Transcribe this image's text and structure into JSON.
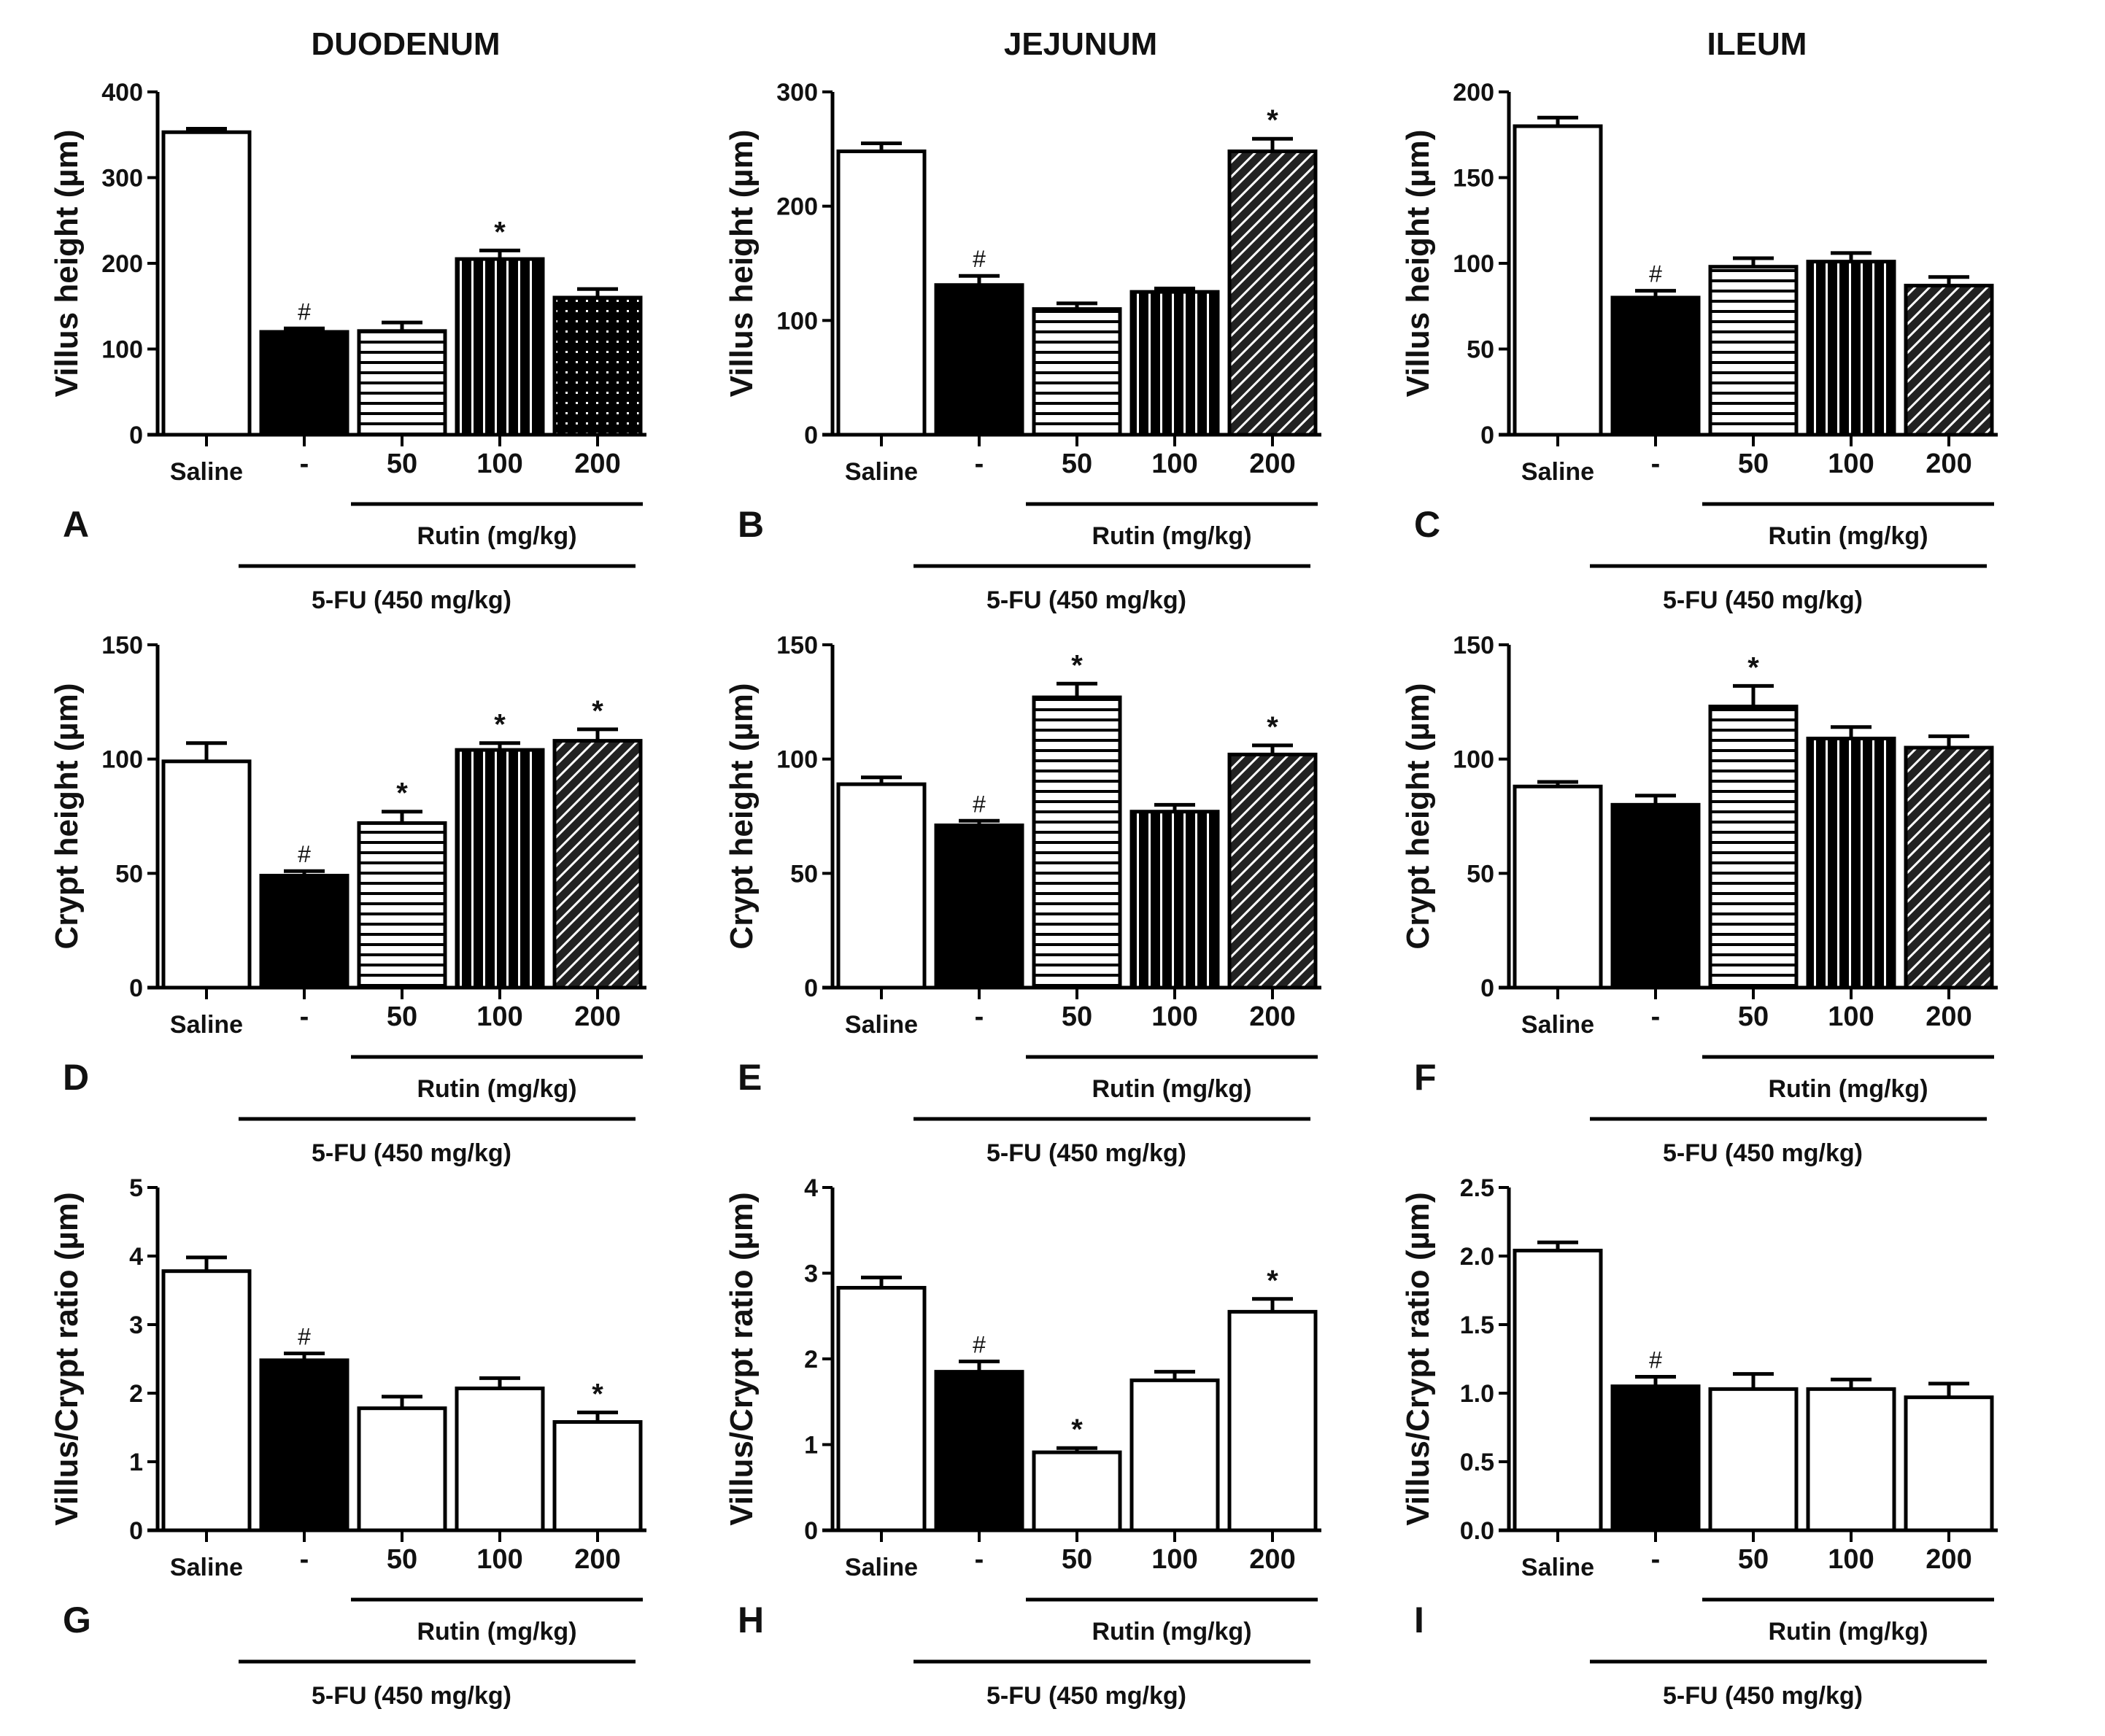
{
  "columns": [
    "DUODENUM",
    "JEJUNUM",
    "ILEUM"
  ],
  "chart_data": [
    {
      "type": "bar",
      "panel": "A",
      "column": 0,
      "row": 0,
      "ylabel": "Villus height (µm)",
      "ylim": [
        0,
        400
      ],
      "yticks": [
        0,
        100,
        200,
        300,
        400
      ],
      "ytick_labels": [
        "0",
        "100",
        "200",
        "300",
        "400"
      ],
      "categories": [
        "Saline",
        "-",
        "50",
        "100",
        "200"
      ],
      "values": [
        353,
        120,
        121,
        205,
        160
      ],
      "errors": [
        4,
        4,
        10,
        10,
        10
      ],
      "markers": [
        "",
        "#",
        "",
        "*",
        ""
      ],
      "fills": [
        "white",
        "black",
        "hlines",
        "vlines",
        "dots"
      ],
      "group1_label": "Rutin (mg/kg)",
      "group2_label": "5-FU  (450 mg/kg)"
    },
    {
      "type": "bar",
      "panel": "B",
      "column": 1,
      "row": 0,
      "ylabel": "Villus height (µm)",
      "ylim": [
        0,
        300
      ],
      "yticks": [
        0,
        100,
        200,
        300
      ],
      "ytick_labels": [
        "0",
        "100",
        "200",
        "300"
      ],
      "categories": [
        "Saline",
        "-",
        "50",
        "100",
        "200"
      ],
      "values": [
        248,
        131,
        110,
        125,
        248
      ],
      "errors": [
        7,
        8,
        5,
        3,
        11
      ],
      "markers": [
        "",
        "#",
        "",
        "",
        "*"
      ],
      "fills": [
        "white",
        "black",
        "hlines",
        "vlines",
        "diag"
      ],
      "group1_label": "Rutin (mg/kg)",
      "group2_label": "5-FU  (450 mg/kg)"
    },
    {
      "type": "bar",
      "panel": "C",
      "column": 2,
      "row": 0,
      "ylabel": "Villus height (µm)",
      "ylim": [
        0,
        200
      ],
      "yticks": [
        0,
        50,
        100,
        150,
        200
      ],
      "ytick_labels": [
        "0",
        "50",
        "100",
        "150",
        "200"
      ],
      "categories": [
        "Saline",
        "-",
        "50",
        "100",
        "200"
      ],
      "values": [
        180,
        80,
        98,
        101,
        87
      ],
      "errors": [
        5,
        4,
        5,
        5,
        5
      ],
      "markers": [
        "",
        "#",
        "",
        "",
        ""
      ],
      "fills": [
        "white",
        "black",
        "hlines",
        "vlines",
        "diag"
      ],
      "group1_label": "Rutin (mg/kg)",
      "group2_label": "5-FU  (450 mg/kg)"
    },
    {
      "type": "bar",
      "panel": "D",
      "column": 0,
      "row": 1,
      "ylabel": "Crypt height (µm)",
      "ylim": [
        0,
        150
      ],
      "yticks": [
        0,
        50,
        100,
        150
      ],
      "ytick_labels": [
        "0",
        "50",
        "100",
        "150"
      ],
      "categories": [
        "Saline",
        "-",
        "50",
        "100",
        "200"
      ],
      "values": [
        99,
        49,
        72,
        104,
        108
      ],
      "errors": [
        8,
        2,
        5,
        3,
        5
      ],
      "markers": [
        "",
        "#",
        "*",
        "*",
        "*"
      ],
      "fills": [
        "white",
        "black",
        "hlines",
        "vlines",
        "diag"
      ],
      "group1_label": "Rutin (mg/kg)",
      "group2_label": "5-FU  (450 mg/kg)"
    },
    {
      "type": "bar",
      "panel": "E",
      "column": 1,
      "row": 1,
      "ylabel": "Crypt height (µm)",
      "ylim": [
        0,
        150
      ],
      "yticks": [
        0,
        50,
        100,
        150
      ],
      "ytick_labels": [
        "0",
        "50",
        "100",
        "150"
      ],
      "categories": [
        "Saline",
        "-",
        "50",
        "100",
        "200"
      ],
      "values": [
        89,
        71,
        127,
        77,
        102
      ],
      "errors": [
        3,
        2,
        6,
        3,
        4
      ],
      "markers": [
        "",
        "#",
        "*",
        "",
        "*"
      ],
      "fills": [
        "white",
        "black",
        "hlines",
        "vlines",
        "diag"
      ],
      "group1_label": "Rutin (mg/kg)",
      "group2_label": "5-FU  (450 mg/kg)"
    },
    {
      "type": "bar",
      "panel": "F",
      "column": 2,
      "row": 1,
      "ylabel": "Crypt height (µm)",
      "ylim": [
        0,
        150
      ],
      "yticks": [
        0,
        50,
        100,
        150
      ],
      "ytick_labels": [
        "0",
        "50",
        "100",
        "150"
      ],
      "categories": [
        "Saline",
        "-",
        "50",
        "100",
        "200"
      ],
      "values": [
        88,
        80,
        123,
        109,
        105
      ],
      "errors": [
        2,
        4,
        9,
        5,
        5
      ],
      "markers": [
        "",
        "",
        "*",
        "",
        ""
      ],
      "fills": [
        "white",
        "black",
        "hlines",
        "vlines",
        "diag"
      ],
      "group1_label": "Rutin (mg/kg)",
      "group2_label": "5-FU  (450 mg/kg)"
    },
    {
      "type": "bar",
      "panel": "G",
      "column": 0,
      "row": 2,
      "ylabel": "Villus/Crypt ratio (µm)",
      "ylim": [
        0,
        5
      ],
      "yticks": [
        0,
        1,
        2,
        3,
        4,
        5
      ],
      "ytick_labels": [
        "0",
        "1",
        "2",
        "3",
        "4",
        "5"
      ],
      "categories": [
        "Saline",
        "-",
        "50",
        "100",
        "200"
      ],
      "values": [
        3.78,
        2.48,
        1.78,
        2.07,
        1.58
      ],
      "errors": [
        0.2,
        0.1,
        0.17,
        0.15,
        0.14
      ],
      "markers": [
        "",
        "#",
        "",
        "",
        "*"
      ],
      "fills": [
        "white",
        "black",
        "white",
        "white",
        "white"
      ],
      "group1_label": "Rutin (mg/kg)",
      "group2_label": "5-FU  (450 mg/kg)"
    },
    {
      "type": "bar",
      "panel": "H",
      "column": 1,
      "row": 2,
      "ylabel": "Villus/Crypt ratio (µm)",
      "ylim": [
        0,
        4
      ],
      "yticks": [
        0,
        1,
        2,
        3,
        4
      ],
      "ytick_labels": [
        "0",
        "1",
        "2",
        "3",
        "4"
      ],
      "categories": [
        "Saline",
        "-",
        "50",
        "100",
        "200"
      ],
      "values": [
        2.83,
        1.85,
        0.91,
        1.75,
        2.55
      ],
      "errors": [
        0.12,
        0.12,
        0.05,
        0.1,
        0.15
      ],
      "markers": [
        "",
        "#",
        "*",
        "",
        "*"
      ],
      "fills": [
        "white",
        "black",
        "white",
        "white",
        "white"
      ],
      "group1_label": "Rutin (mg/kg)",
      "group2_label": "5-FU  (450 mg/kg)"
    },
    {
      "type": "bar",
      "panel": "I",
      "column": 2,
      "row": 2,
      "ylabel": "Villus/Crypt ratio (µm)",
      "ylim": [
        0,
        2.5
      ],
      "yticks": [
        0,
        0.5,
        1,
        1.5,
        2,
        2.5
      ],
      "ytick_labels": [
        "0.0",
        "0.5",
        "1.0",
        "1.5",
        "2.0",
        "2.5"
      ],
      "categories": [
        "Saline",
        "-",
        "50",
        "100",
        "200"
      ],
      "values": [
        2.04,
        1.05,
        1.03,
        1.03,
        0.97
      ],
      "errors": [
        0.06,
        0.07,
        0.11,
        0.07,
        0.1
      ],
      "markers": [
        "",
        "#",
        "",
        "",
        ""
      ],
      "fills": [
        "white",
        "black",
        "white",
        "white",
        "white"
      ],
      "group1_label": "Rutin (mg/kg)",
      "group2_label": "5-FU  (450 mg/kg)"
    }
  ]
}
